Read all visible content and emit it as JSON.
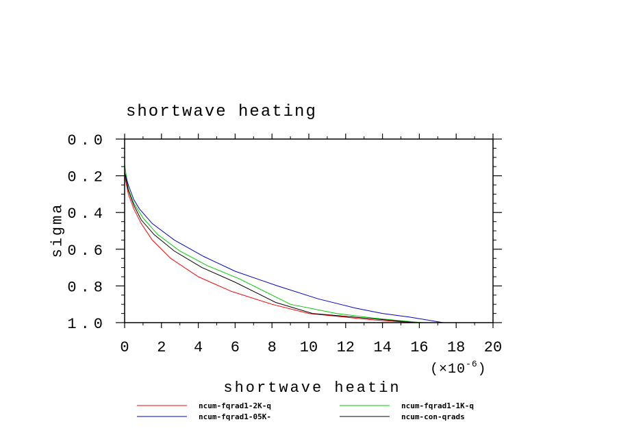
{
  "chart_data": {
    "type": "line",
    "title": "shortwave heating",
    "xlabel": "shortwave heatin",
    "ylabel": "sigma",
    "x_multiplier": {
      "prefix": "(×10",
      "exponent": "-6",
      "suffix": ")"
    },
    "xlim": [
      0,
      20
    ],
    "ylim": [
      0.0,
      1.0
    ],
    "y_inverted": true,
    "x_ticks": [
      0,
      2,
      4,
      6,
      8,
      10,
      12,
      14,
      16,
      18,
      20
    ],
    "x_tick_labels": [
      "0",
      "2",
      "4",
      "6",
      "8",
      "10",
      "12",
      "14",
      "16",
      "18",
      "20"
    ],
    "y_ticks": [
      0.0,
      0.2,
      0.4,
      0.6,
      0.8,
      1.0
    ],
    "y_tick_labels": [
      "0.0",
      "0.2",
      "0.4",
      "0.6",
      "0.8",
      "1.0"
    ],
    "grid": false,
    "legend_position": "bottom",
    "series": [
      {
        "name": "ncum-fqrad1-2K-q",
        "color": "#ff0000",
        "x": [
          0.0,
          0.2,
          0.5,
          0.9,
          1.5,
          2.5,
          4.0,
          5.8,
          8.0,
          10.0,
          12.0,
          13.5,
          15.0,
          16.0
        ],
        "y": [
          0.2,
          0.3,
          0.38,
          0.46,
          0.55,
          0.65,
          0.75,
          0.83,
          0.9,
          0.95,
          0.97,
          0.985,
          0.995,
          1.0
        ]
      },
      {
        "name": "ncum-fqrad1-1K-q",
        "color": "#00cc00",
        "x": [
          0.0,
          0.2,
          0.5,
          1.0,
          1.8,
          3.0,
          4.5,
          6.2,
          9.0,
          11.5,
          13.5,
          15.0,
          16.2
        ],
        "y": [
          0.14,
          0.27,
          0.35,
          0.43,
          0.52,
          0.61,
          0.69,
          0.76,
          0.9,
          0.95,
          0.975,
          0.99,
          1.0
        ]
      },
      {
        "name": "ncum-fqrad1-05K-",
        "color": "#0000cc",
        "x": [
          0.0,
          0.2,
          0.5,
          0.8,
          1.5,
          2.7,
          4.3,
          6.0,
          8.3,
          10.5,
          12.5,
          14.0,
          15.5,
          17.3
        ],
        "y": [
          0.18,
          0.25,
          0.33,
          0.38,
          0.46,
          0.55,
          0.64,
          0.72,
          0.8,
          0.87,
          0.92,
          0.95,
          0.97,
          1.0
        ]
      },
      {
        "name": "ncum-con-qrads",
        "color": "#000000",
        "x": [
          0.0,
          0.2,
          0.5,
          0.9,
          1.6,
          2.7,
          4.2,
          6.0,
          8.2,
          10.2,
          12.5,
          14.2,
          15.8
        ],
        "y": [
          0.18,
          0.28,
          0.36,
          0.44,
          0.52,
          0.61,
          0.7,
          0.78,
          0.89,
          0.95,
          0.97,
          0.985,
          1.0
        ]
      }
    ]
  }
}
